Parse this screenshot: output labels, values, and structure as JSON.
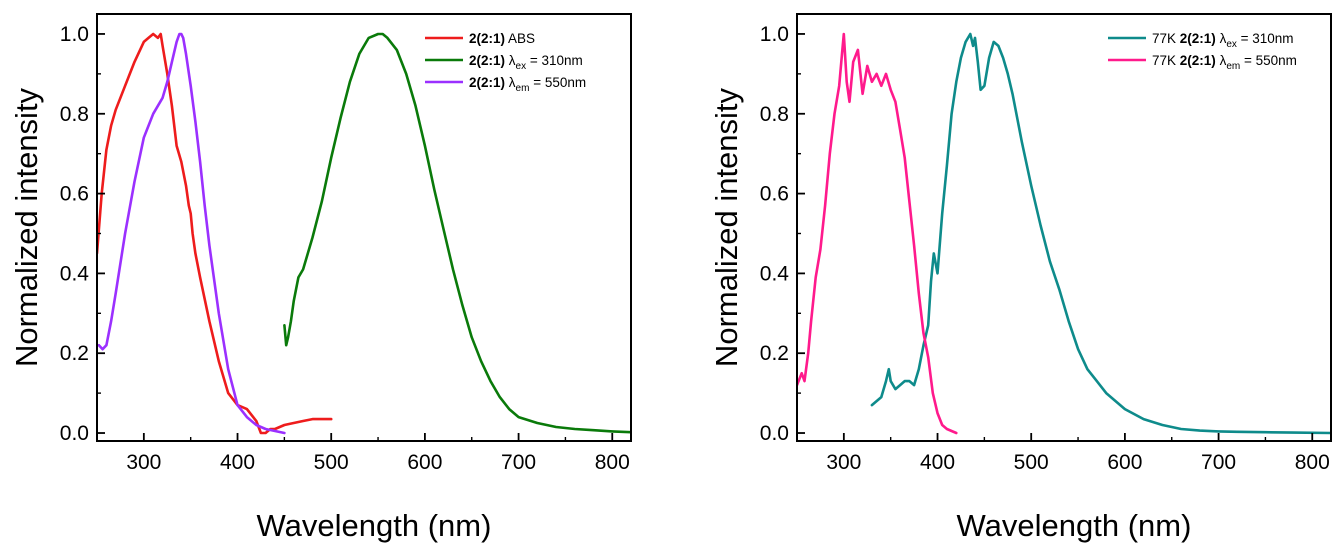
{
  "chart_data": [
    {
      "type": "line",
      "xlabel": "Wavelength (nm)",
      "ylabel": "Normalized intensity",
      "xlim": [
        250,
        820
      ],
      "ylim": [
        -0.02,
        1.05
      ],
      "x_ticks": [
        300,
        400,
        500,
        600,
        700,
        800
      ],
      "y_ticks": [
        0.0,
        0.2,
        0.4,
        0.6,
        0.8,
        1.0
      ],
      "x_tick_labels": [
        "300",
        "400",
        "500",
        "600",
        "700",
        "800"
      ],
      "y_tick_labels": [
        "0.0",
        "0.2",
        "0.4",
        "0.6",
        "0.8",
        "1.0"
      ],
      "legend_position": "top-right",
      "series": [
        {
          "legend_bold": "2(2:1)",
          "legend_prefix": "",
          "legend_rest": " ABS",
          "legend_sub": "",
          "legend_tail": "",
          "color": "#ee1c1c",
          "x": [
            250,
            255,
            260,
            265,
            270,
            280,
            290,
            300,
            305,
            310,
            315,
            318,
            320,
            325,
            330,
            335,
            340,
            345,
            348,
            350,
            352,
            355,
            360,
            370,
            380,
            390,
            400,
            410,
            420,
            425,
            430,
            435,
            440,
            450,
            460,
            470,
            480,
            490,
            500
          ],
          "y": [
            0.45,
            0.6,
            0.71,
            0.77,
            0.81,
            0.87,
            0.93,
            0.98,
            0.99,
            1.0,
            0.99,
            1.0,
            0.97,
            0.9,
            0.82,
            0.72,
            0.68,
            0.62,
            0.57,
            0.55,
            0.5,
            0.45,
            0.39,
            0.28,
            0.18,
            0.1,
            0.07,
            0.06,
            0.03,
            0.0,
            0.0,
            0.01,
            0.01,
            0.02,
            0.025,
            0.03,
            0.035,
            0.035,
            0.035
          ]
        },
        {
          "legend_bold": "2(2:1)",
          "legend_prefix": " ",
          "legend_rest": "",
          "legend_sub": "ex",
          "legend_tail": " = 310nm",
          "color": "#0a7a0a",
          "x": [
            450,
            452,
            454,
            457,
            460,
            465,
            470,
            480,
            490,
            500,
            510,
            520,
            530,
            540,
            550,
            555,
            560,
            570,
            580,
            590,
            600,
            610,
            620,
            630,
            640,
            650,
            660,
            670,
            680,
            690,
            700,
            720,
            740,
            760,
            780,
            800,
            820
          ],
          "y": [
            0.27,
            0.22,
            0.24,
            0.28,
            0.33,
            0.39,
            0.41,
            0.49,
            0.58,
            0.69,
            0.79,
            0.88,
            0.95,
            0.99,
            1.0,
            1.0,
            0.99,
            0.96,
            0.9,
            0.82,
            0.72,
            0.61,
            0.51,
            0.41,
            0.32,
            0.24,
            0.18,
            0.13,
            0.09,
            0.06,
            0.04,
            0.025,
            0.015,
            0.01,
            0.007,
            0.004,
            0.002
          ]
        },
        {
          "legend_bold": "2(2:1)",
          "legend_prefix": " ",
          "legend_rest": "",
          "legend_sub": "em",
          "legend_tail": " = 550nm",
          "color": "#9b30ff",
          "x": [
            252,
            256,
            260,
            265,
            270,
            280,
            290,
            300,
            310,
            320,
            325,
            330,
            335,
            338,
            340,
            342,
            345,
            350,
            355,
            360,
            365,
            370,
            380,
            390,
            400,
            410,
            420,
            430,
            440,
            450
          ],
          "y": [
            0.22,
            0.21,
            0.22,
            0.28,
            0.35,
            0.5,
            0.63,
            0.74,
            0.8,
            0.84,
            0.88,
            0.93,
            0.98,
            1.0,
            1.0,
            0.99,
            0.95,
            0.87,
            0.78,
            0.68,
            0.57,
            0.47,
            0.3,
            0.16,
            0.07,
            0.04,
            0.02,
            0.01,
            0.005,
            0.0
          ]
        }
      ]
    },
    {
      "type": "line",
      "xlabel": "Wavelength (nm)",
      "ylabel": "Normalized intensity",
      "xlim": [
        250,
        820
      ],
      "ylim": [
        -0.02,
        1.05
      ],
      "x_ticks": [
        300,
        400,
        500,
        600,
        700,
        800
      ],
      "y_ticks": [
        0.0,
        0.2,
        0.4,
        0.6,
        0.8,
        1.0
      ],
      "x_tick_labels": [
        "300",
        "400",
        "500",
        "600",
        "700",
        "800"
      ],
      "y_tick_labels": [
        "0.0",
        "0.2",
        "0.4",
        "0.6",
        "0.8",
        "1.0"
      ],
      "legend_position": "top-right",
      "series": [
        {
          "legend_prefix": "77K ",
          "legend_bold": "2(2:1)",
          "legend_rest": " ",
          "legend_sub": "ex",
          "legend_tail": " = 310nm",
          "color": "#0e8b8b",
          "x": [
            330,
            335,
            340,
            345,
            348,
            350,
            355,
            360,
            365,
            370,
            375,
            380,
            385,
            390,
            393,
            396,
            400,
            405,
            410,
            415,
            420,
            425,
            430,
            435,
            438,
            440,
            443,
            446,
            450,
            455,
            460,
            465,
            470,
            475,
            480,
            490,
            500,
            510,
            520,
            530,
            540,
            550,
            560,
            570,
            580,
            600,
            620,
            640,
            660,
            680,
            700,
            720,
            750,
            780,
            820
          ],
          "y": [
            0.07,
            0.08,
            0.09,
            0.13,
            0.16,
            0.13,
            0.11,
            0.12,
            0.13,
            0.13,
            0.12,
            0.16,
            0.22,
            0.27,
            0.38,
            0.45,
            0.4,
            0.55,
            0.67,
            0.8,
            0.88,
            0.94,
            0.98,
            1.0,
            0.97,
            0.99,
            0.93,
            0.86,
            0.87,
            0.94,
            0.98,
            0.97,
            0.94,
            0.9,
            0.85,
            0.73,
            0.62,
            0.52,
            0.43,
            0.36,
            0.28,
            0.21,
            0.16,
            0.13,
            0.1,
            0.06,
            0.035,
            0.02,
            0.01,
            0.006,
            0.004,
            0.003,
            0.002,
            0.001,
            0.0
          ]
        },
        {
          "legend_prefix": "77K ",
          "legend_bold": "2(2:1)",
          "legend_rest": " ",
          "legend_sub": "em",
          "legend_tail": " = 550nm",
          "color": "#ff1a8c",
          "x": [
            250,
            255,
            258,
            262,
            265,
            270,
            275,
            280,
            285,
            290,
            295,
            298,
            300,
            303,
            306,
            310,
            315,
            320,
            325,
            330,
            335,
            340,
            345,
            350,
            355,
            360,
            365,
            370,
            375,
            380,
            385,
            390,
            395,
            400,
            405,
            410,
            415,
            420
          ],
          "y": [
            0.12,
            0.15,
            0.13,
            0.2,
            0.28,
            0.39,
            0.46,
            0.57,
            0.7,
            0.8,
            0.87,
            0.95,
            1.0,
            0.88,
            0.83,
            0.93,
            0.96,
            0.85,
            0.92,
            0.88,
            0.9,
            0.87,
            0.9,
            0.86,
            0.83,
            0.76,
            0.69,
            0.58,
            0.47,
            0.35,
            0.25,
            0.19,
            0.1,
            0.05,
            0.02,
            0.01,
            0.005,
            0.0
          ]
        }
      ]
    }
  ]
}
